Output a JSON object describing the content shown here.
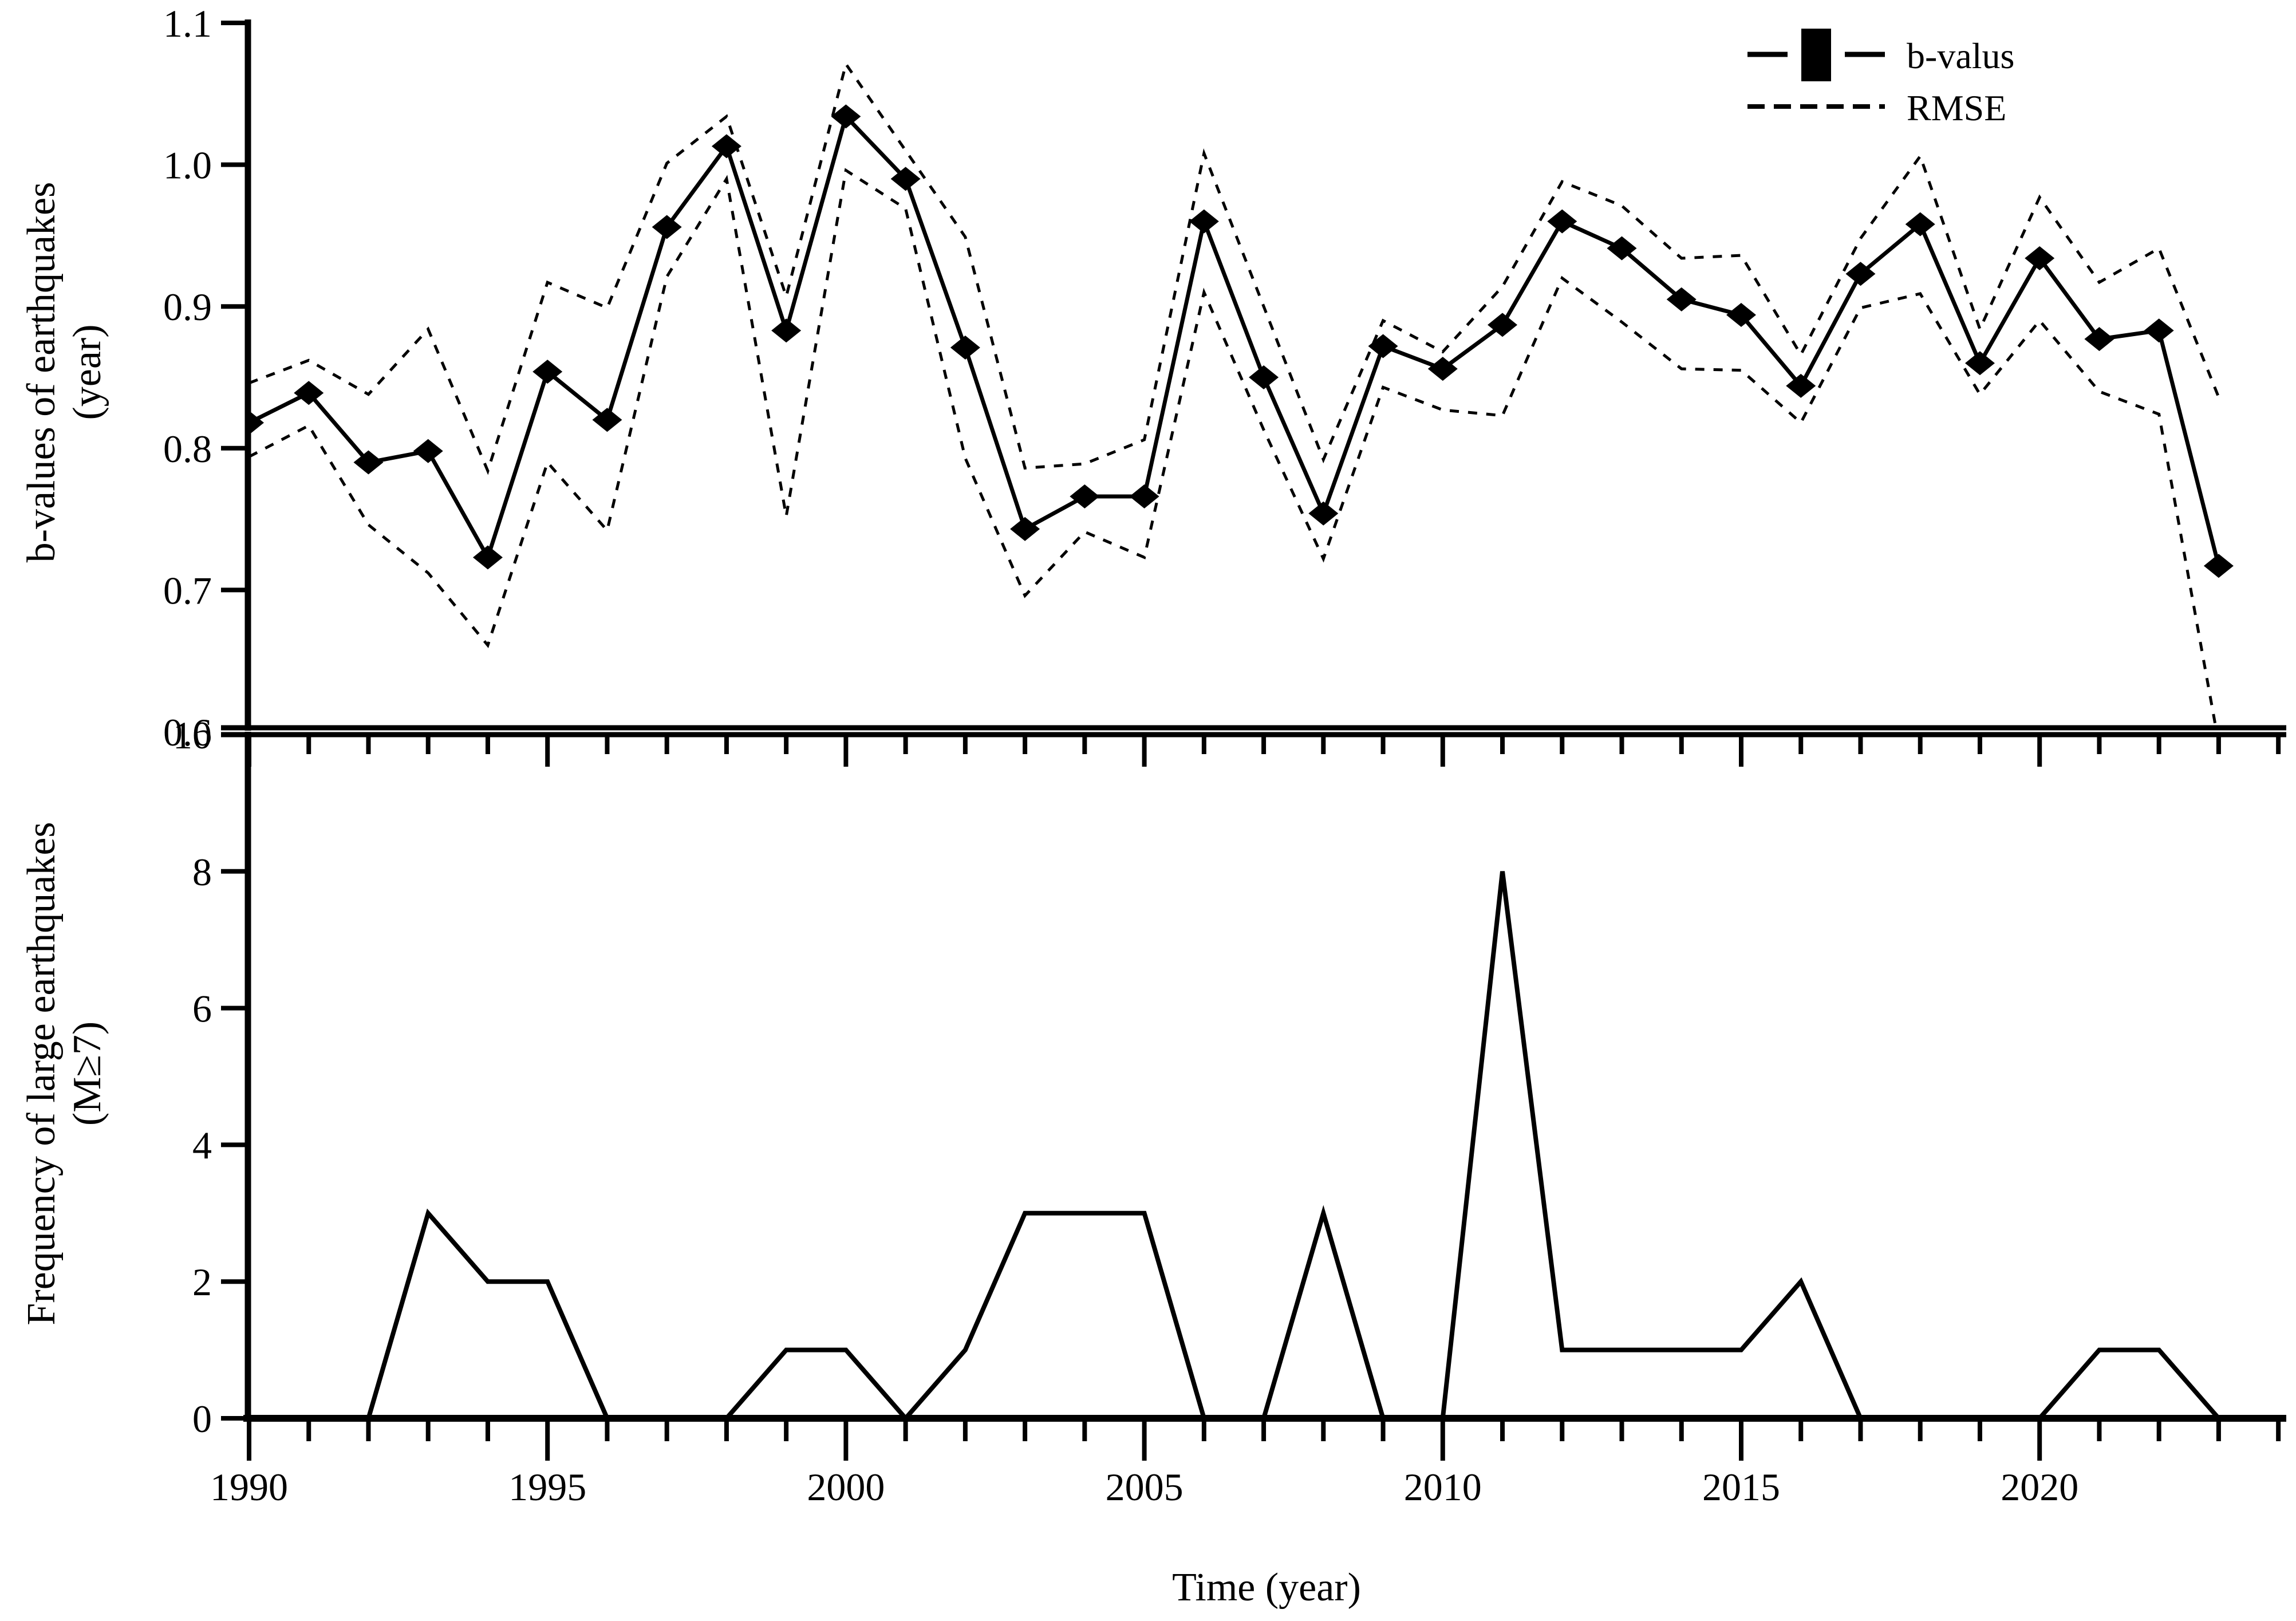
{
  "figure": {
    "background": "#ffffff",
    "ink_color": "#000000"
  },
  "chart_data": [
    {
      "type": "line",
      "panel": "top",
      "title": "",
      "ylabel_lines": [
        "b-values of earthquakes",
        "(year)"
      ],
      "ylim": [
        0.6,
        1.1
      ],
      "yticks": [
        1.1,
        1.0,
        0.9,
        0.8,
        0.7,
        0.6
      ],
      "ytick_labels": [
        "1.1",
        "1.0",
        "0.9",
        "0.8",
        "0.7",
        "0.6"
      ],
      "grid": false,
      "legend_position": "top-right",
      "legend": [
        {
          "label": "b-valus",
          "type": "solid-line-square-marker"
        },
        {
          "label": "RMSE",
          "type": "dashed-line"
        }
      ],
      "x": [
        1990,
        1991,
        1992,
        1993,
        1994,
        1995,
        1996,
        1997,
        1998,
        1999,
        2000,
        2001,
        2002,
        2003,
        2004,
        2005,
        2006,
        2007,
        2008,
        2009,
        2010,
        2011,
        2012,
        2013,
        2014,
        2015,
        2016,
        2017,
        2018,
        2019,
        2020,
        2021,
        2022,
        2023
      ],
      "series": [
        {
          "name": "b-valus",
          "style": "solid-diamond",
          "values": [
            0.818,
            0.839,
            0.79,
            0.798,
            0.723,
            0.854,
            0.82,
            0.956,
            1.013,
            0.883,
            1.034,
            0.99,
            0.871,
            0.743,
            0.766,
            0.766,
            0.96,
            0.85,
            0.754,
            0.872,
            0.856,
            0.887,
            0.96,
            0.941,
            0.905,
            0.894,
            0.844,
            0.923,
            0.958,
            0.86,
            0.934,
            0.877,
            0.883,
            0.717
          ]
        },
        {
          "name": "RMSE upper",
          "style": "dashed",
          "values": [
            0.846,
            0.862,
            0.838,
            0.884,
            0.784,
            0.917,
            0.899,
            1.001,
            1.034,
            0.907,
            1.071,
            1.01,
            0.949,
            0.786,
            0.789,
            0.806,
            1.008,
            0.9,
            0.792,
            0.89,
            0.868,
            0.914,
            0.988,
            0.971,
            0.934,
            0.936,
            0.866,
            0.948,
            1.006,
            0.884,
            0.977,
            0.917,
            0.941,
            0.836
          ]
        },
        {
          "name": "RMSE lower",
          "style": "dashed",
          "values": [
            0.794,
            0.816,
            0.746,
            0.712,
            0.661,
            0.79,
            0.742,
            0.921,
            0.99,
            0.752,
            0.996,
            0.969,
            0.793,
            0.696,
            0.741,
            0.723,
            0.91,
            0.813,
            0.722,
            0.843,
            0.827,
            0.823,
            0.92,
            0.889,
            0.856,
            0.855,
            0.818,
            0.899,
            0.909,
            0.838,
            0.89,
            0.84,
            0.824,
            0.592
          ]
        }
      ]
    },
    {
      "type": "line",
      "panel": "bottom",
      "title": "",
      "ylabel_lines": [
        "Frequency of large earthquakes",
        "(M≥7)"
      ],
      "xlabel": "Time (year)",
      "ylim": [
        0,
        10
      ],
      "yticks": [
        10,
        8,
        6,
        4,
        2,
        0
      ],
      "ytick_labels": [
        "10",
        "8",
        "6",
        "4",
        "2",
        "0"
      ],
      "xlim": [
        1990,
        2024
      ],
      "xticks_major": [
        1990,
        1995,
        2000,
        2005,
        2010,
        2015,
        2020
      ],
      "xtick_labels": [
        "1990",
        "1995",
        "2000",
        "2005",
        "2010",
        "2015",
        "2020"
      ],
      "grid": false,
      "x": [
        1990,
        1991,
        1992,
        1993,
        1994,
        1995,
        1996,
        1997,
        1998,
        1999,
        2000,
        2001,
        2002,
        2003,
        2004,
        2005,
        2006,
        2007,
        2008,
        2009,
        2010,
        2011,
        2012,
        2013,
        2014,
        2015,
        2016,
        2017,
        2018,
        2019,
        2020,
        2021,
        2022,
        2023
      ],
      "series": [
        {
          "name": "frequency of large earthquakes",
          "style": "solid",
          "values": [
            0,
            0,
            0,
            3,
            2,
            2,
            0,
            0,
            0,
            1,
            1,
            0,
            1,
            3,
            3,
            3,
            0,
            0,
            3,
            0,
            0,
            8,
            1,
            1,
            1,
            1,
            2,
            0,
            0,
            0,
            0,
            1,
            1,
            0
          ]
        }
      ]
    }
  ]
}
